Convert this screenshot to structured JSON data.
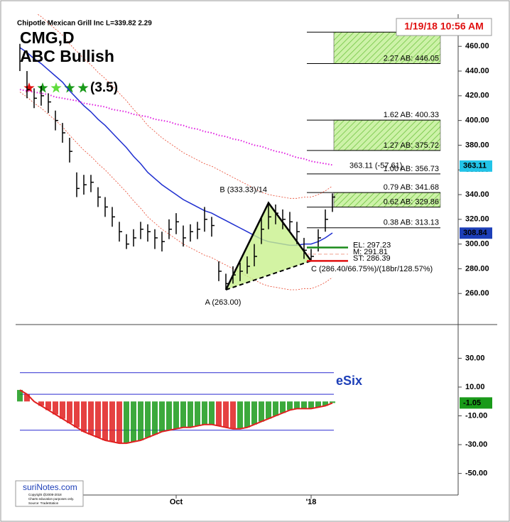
{
  "header": {
    "symbol_line": "Chipotle Mexican Grill Inc  L=339.82  2.29",
    "ticker": "CMG,D",
    "pattern_name": "ABC Bullish",
    "rating": "(3.5)",
    "star_colors": [
      "#e01010",
      "#1a9a1a",
      "#5fdc3c",
      "#1a9a1a",
      "#1a9a1a"
    ]
  },
  "timestamp": "1/19/18 10:56 AM",
  "logo": {
    "brand": "suriNotes.com",
    "lines": [
      "Copyright @2008-2018",
      "Charts education purposes only.",
      "Source: TradeStation"
    ]
  },
  "chart_data": [
    {
      "type": "ohlc",
      "color": "#000000",
      "high": [
        462,
        440,
        426,
        428,
        422,
        408,
        398,
        386,
        358,
        356,
        356,
        346,
        338,
        330,
        318,
        308,
        312,
        318,
        316,
        312,
        310,
        320,
        325,
        315,
        316,
        318,
        330,
        322,
        286,
        276,
        282,
        285,
        290,
        300,
        322,
        333.33,
        332,
        328,
        326,
        318,
        305,
        296,
        312,
        328,
        341
      ],
      "low": [
        440,
        418,
        410,
        412,
        406,
        392,
        382,
        366,
        338,
        340,
        342,
        330,
        322,
        314,
        302,
        296,
        298,
        304,
        302,
        296,
        294,
        304,
        308,
        298,
        302,
        304,
        310,
        306,
        270,
        263,
        268,
        270,
        276,
        282,
        300,
        312,
        316,
        312,
        310,
        300,
        288,
        286.4,
        294,
        310,
        326
      ],
      "close": [
        448,
        425,
        418,
        420,
        415,
        400,
        390,
        375,
        345,
        348,
        350,
        338,
        330,
        322,
        310,
        300,
        305,
        312,
        310,
        305,
        302,
        312,
        318,
        305,
        310,
        312,
        320,
        315,
        278,
        268,
        275,
        278,
        282,
        290,
        312,
        322,
        325,
        320,
        318,
        310,
        295,
        290,
        305,
        320,
        338
      ],
      "overlays": [
        {
          "color": "#1f2fd0",
          "style": "solid",
          "values": [
            459,
            455,
            450,
            446,
            441,
            436,
            431,
            424,
            418,
            412,
            407,
            401,
            396,
            390,
            384,
            378,
            371,
            365,
            358,
            353,
            348,
            344,
            340,
            336,
            333,
            330,
            327,
            325,
            322,
            319,
            316,
            313,
            310,
            307,
            304,
            302,
            301,
            300,
            299,
            299,
            300,
            300,
            302,
            305,
            309
          ]
        },
        {
          "color": "#e020e0",
          "style": "dotted",
          "values": [
            425,
            424,
            423,
            422,
            421,
            419,
            418,
            417,
            416,
            414,
            413,
            412,
            411,
            409,
            408,
            407,
            405,
            404,
            403,
            401,
            400,
            399,
            397,
            396,
            394,
            393,
            391,
            390,
            388,
            387,
            385,
            384,
            382,
            380,
            379,
            377,
            375,
            374,
            372,
            370,
            369,
            367,
            366,
            365,
            364
          ]
        },
        {
          "color": "#e8452c",
          "style": "thin-dotted",
          "values": [
            497,
            493,
            488,
            484,
            479,
            474,
            469,
            462,
            456,
            450,
            445,
            439,
            434,
            428,
            422,
            416,
            409,
            403,
            396,
            391,
            386,
            382,
            378,
            374,
            371,
            368,
            365,
            363,
            360,
            357,
            354,
            351,
            348,
            345,
            342,
            340,
            339,
            338,
            337,
            337,
            338,
            338,
            340,
            343,
            347
          ]
        },
        {
          "color": "#e8452c",
          "style": "thin-dotted",
          "values": [
            423,
            419,
            414,
            410,
            405,
            400,
            395,
            388,
            382,
            376,
            371,
            365,
            360,
            354,
            348,
            342,
            335,
            329,
            322,
            317,
            312,
            308,
            304,
            300,
            297,
            294,
            291,
            289,
            286,
            283,
            280,
            277,
            274,
            271,
            268,
            266,
            265,
            264,
            263,
            263,
            264,
            264,
            266,
            269,
            273
          ]
        }
      ],
      "ylim": [
        236,
        486
      ],
      "yticks": [
        {
          "value": 260,
          "label": "260.00"
        },
        {
          "value": 280,
          "label": "280.00"
        },
        {
          "value": 300,
          "label": "300.00"
        },
        {
          "value": 320,
          "label": "320.00"
        },
        {
          "value": 340,
          "label": "340.00"
        },
        {
          "value": 360,
          "label": "360.00"
        },
        {
          "value": 380,
          "label": "380.00"
        },
        {
          "value": 400,
          "label": "400.00"
        },
        {
          "value": 420,
          "label": "420.00"
        },
        {
          "value": 440,
          "label": "440.00"
        },
        {
          "value": 460,
          "label": "460.00"
        }
      ],
      "levels": [
        {
          "label": "2.27 AB: 446.05",
          "value": 446.05
        },
        {
          "label": "1.62 AB: 400.33",
          "value": 400.33
        },
        {
          "label": "1.27 AB: 375.72",
          "value": 375.72
        },
        {
          "label": "1.00 AB: 356.73",
          "value": 356.73
        },
        {
          "label": "0.79 AB: 341.68",
          "value": 341.68
        },
        {
          "label": "0.62 AB: 329.86",
          "value": 329.86
        },
        {
          "label": "0.38 AB: 313.13",
          "value": 313.13
        }
      ],
      "top_level": 471.5,
      "zones": [
        {
          "from": 446.05,
          "to": 471.5
        },
        {
          "from": 375.72,
          "to": 400.33
        },
        {
          "from": 329.86,
          "to": 341.68
        }
      ],
      "annotations": [
        {
          "text": "363.11 (-57.61)",
          "value": 363.11
        }
      ],
      "pattern": {
        "fill": "#c8f08c",
        "points": [
          {
            "x": 29,
            "value": 263,
            "label": "A (263.00)"
          },
          {
            "x": 35,
            "value": 333.33,
            "label": "B (333.33)/14"
          },
          {
            "x": 41,
            "value": 286.4,
            "label": "C (286.40/66.75%)/(18br/128.57%)"
          }
        ]
      },
      "trade": [
        {
          "label": "EL: 297.23",
          "value": 297.23,
          "color": "#1a8a1a",
          "text_color": "#000000",
          "dash": false
        },
        {
          "label": "M: 291.81",
          "value": 291.81,
          "color": "#f0a090",
          "text_color": "#000000",
          "dash": true
        },
        {
          "label": "ST: 286.39",
          "value": 286.39,
          "color": "#e01010",
          "text_color": "#e01010",
          "dash": false
        }
      ],
      "tags": [
        {
          "value": 363.11,
          "color": "#22c4e8"
        },
        {
          "value": 308.84,
          "color": "#1d3fb8"
        }
      ]
    },
    {
      "type": "histogram",
      "title": "eSix",
      "categories": [
        null,
        null,
        null,
        null,
        null,
        null,
        null,
        null,
        null,
        null,
        null,
        null,
        null,
        null,
        null,
        null,
        null,
        null,
        null,
        null,
        null,
        null,
        "Oct",
        null,
        null,
        null,
        null,
        null,
        null,
        null,
        null,
        null,
        null,
        null,
        null,
        null,
        null,
        null,
        null,
        null,
        null,
        "'18",
        null,
        null,
        null
      ],
      "values": [
        8,
        5,
        0,
        -3,
        -6,
        -9,
        -12,
        -15,
        -18,
        -21,
        -23,
        -25,
        -27,
        -28,
        -29,
        -29,
        -28,
        -27,
        -25,
        -23,
        -21,
        -20,
        -19,
        -18,
        -18,
        -17,
        -16,
        -16,
        -17,
        -18,
        -19,
        -19,
        -18,
        -16,
        -14,
        -12,
        -10,
        -8,
        -6,
        -5,
        -5,
        -5,
        -4,
        -3,
        -1.05
      ],
      "up_color": "#1a9a1a",
      "down_color": "#e02020",
      "line_color": "#e02020",
      "reference_lines": [
        {
          "value": 20,
          "color": "#2a2ad0"
        },
        {
          "value": 5,
          "color": "#2a2ad0"
        },
        {
          "value": -20,
          "color": "#2a2ad0"
        }
      ],
      "ylim": [
        -64,
        47
      ],
      "yticks": [
        {
          "value": 30,
          "label": "30.00"
        },
        {
          "value": 10,
          "label": "10.00"
        },
        {
          "value": -10,
          "label": "-10.00"
        },
        {
          "value": -30,
          "label": "-30.00"
        },
        {
          "value": -50,
          "label": "-50.00"
        }
      ],
      "tags": [
        {
          "value": -1.05,
          "color": "#1a9a1a"
        }
      ]
    }
  ]
}
